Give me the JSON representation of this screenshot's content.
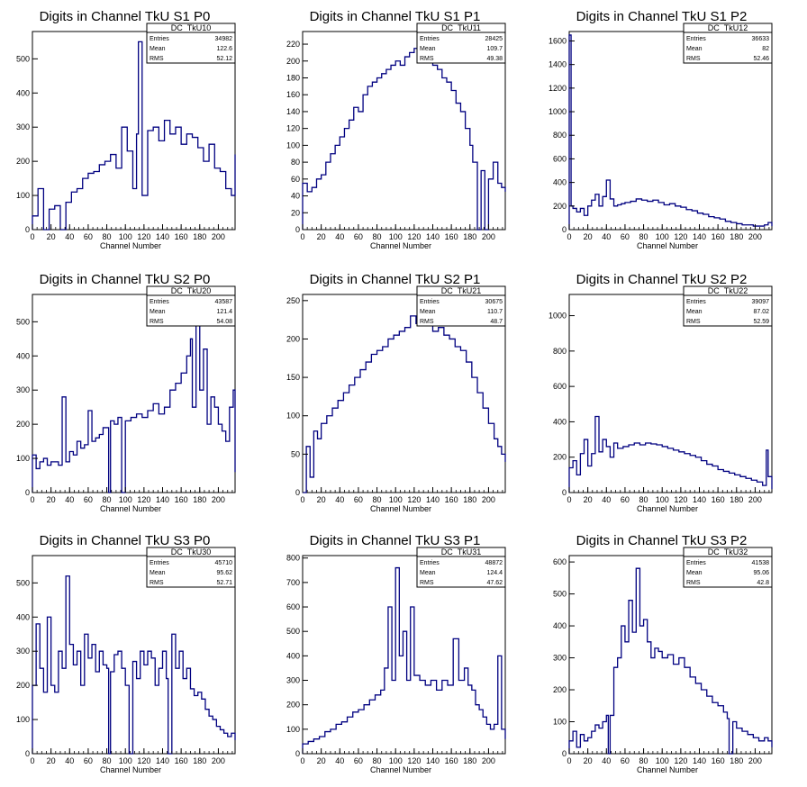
{
  "line_color": "#000080",
  "chart_data": [
    {
      "type": "line",
      "title": "Digits in Channel TkU S1 P0",
      "xlabel": "Channel Number",
      "stats": {
        "name": "DC_TkU10",
        "entries": "34982",
        "mean": "122.6",
        "rms": "52.12"
      },
      "xlim": [
        0,
        218
      ],
      "ylim": [
        0,
        580
      ],
      "xticks": [
        0,
        20,
        40,
        60,
        80,
        100,
        120,
        140,
        160,
        180,
        200
      ],
      "yticks": [
        100,
        200,
        300,
        400,
        500
      ],
      "x": [
        0,
        6,
        12,
        18,
        24,
        30,
        36,
        42,
        48,
        54,
        60,
        66,
        72,
        78,
        84,
        90,
        96,
        102,
        108,
        112,
        114,
        118,
        124,
        130,
        136,
        142,
        148,
        154,
        160,
        166,
        172,
        178,
        184,
        190,
        196,
        202,
        208,
        214,
        218
      ],
      "values": [
        40,
        120,
        0,
        60,
        70,
        0,
        80,
        110,
        120,
        150,
        165,
        170,
        190,
        200,
        220,
        180,
        300,
        230,
        120,
        280,
        550,
        100,
        290,
        300,
        260,
        320,
        280,
        300,
        250,
        280,
        270,
        240,
        200,
        250,
        180,
        170,
        120,
        100,
        220
      ],
      "ystyle": "int"
    },
    {
      "type": "line",
      "title": "Digits in Channel TkU S1 P1",
      "xlabel": "Channel Number",
      "stats": {
        "name": "DC_TkU11",
        "entries": "28425",
        "mean": "109.7",
        "rms": "49.38"
      },
      "xlim": [
        0,
        218
      ],
      "ylim": [
        0,
        235
      ],
      "xticks": [
        0,
        20,
        40,
        60,
        80,
        100,
        120,
        140,
        160,
        180,
        200
      ],
      "yticks": [
        20,
        40,
        60,
        80,
        100,
        120,
        140,
        160,
        180,
        200,
        220
      ],
      "x": [
        0,
        5,
        10,
        15,
        20,
        25,
        30,
        35,
        40,
        45,
        50,
        55,
        60,
        65,
        70,
        75,
        80,
        85,
        90,
        95,
        100,
        105,
        110,
        115,
        120,
        125,
        130,
        135,
        140,
        145,
        150,
        155,
        160,
        165,
        170,
        175,
        180,
        183,
        188,
        192,
        196,
        200,
        205,
        210,
        214,
        218
      ],
      "values": [
        55,
        45,
        50,
        60,
        65,
        80,
        90,
        100,
        110,
        120,
        130,
        145,
        140,
        160,
        170,
        175,
        180,
        185,
        190,
        195,
        200,
        195,
        205,
        210,
        215,
        210,
        205,
        200,
        195,
        190,
        180,
        175,
        165,
        150,
        140,
        120,
        100,
        80,
        0,
        70,
        0,
        60,
        80,
        55,
        50,
        45
      ],
      "ystyle": "int"
    },
    {
      "type": "line",
      "title": "Digits in Channel TkU S1 P2",
      "xlabel": "Channel Number",
      "stats": {
        "name": "DC_TkU12",
        "entries": "36633",
        "mean": "82",
        "rms": "52.46"
      },
      "xlim": [
        0,
        218
      ],
      "ylim": [
        0,
        1680
      ],
      "xticks": [
        0,
        20,
        40,
        60,
        80,
        100,
        120,
        140,
        160,
        180,
        200
      ],
      "yticks": [
        200,
        400,
        600,
        800,
        1000,
        1200,
        1400,
        1600
      ],
      "x": [
        0,
        2,
        4,
        8,
        12,
        16,
        20,
        24,
        28,
        32,
        36,
        40,
        44,
        48,
        52,
        56,
        60,
        66,
        72,
        78,
        84,
        90,
        96,
        102,
        108,
        114,
        120,
        126,
        132,
        138,
        144,
        150,
        156,
        162,
        168,
        174,
        180,
        186,
        192,
        198,
        204,
        210,
        214,
        218
      ],
      "values": [
        1650,
        200,
        180,
        150,
        180,
        120,
        200,
        250,
        300,
        200,
        280,
        420,
        260,
        200,
        210,
        220,
        230,
        240,
        260,
        250,
        240,
        250,
        230,
        210,
        220,
        200,
        190,
        170,
        160,
        140,
        130,
        110,
        100,
        90,
        70,
        60,
        50,
        40,
        40,
        30,
        30,
        40,
        60,
        30
      ],
      "ystyle": "int"
    },
    {
      "type": "line",
      "title": "Digits in Channel TkU S2 P0",
      "xlabel": "Channel Number",
      "stats": {
        "name": "DC_TkU20",
        "entries": "43587",
        "mean": "121.4",
        "rms": "54.08"
      },
      "xlim": [
        0,
        218
      ],
      "ylim": [
        0,
        580
      ],
      "xticks": [
        0,
        20,
        40,
        60,
        80,
        100,
        120,
        140,
        160,
        180,
        200
      ],
      "yticks": [
        100,
        200,
        300,
        400,
        500
      ],
      "x": [
        0,
        4,
        8,
        12,
        16,
        20,
        24,
        28,
        32,
        36,
        40,
        44,
        48,
        52,
        56,
        60,
        64,
        68,
        72,
        76,
        80,
        82,
        84,
        88,
        92,
        96,
        100,
        106,
        112,
        118,
        124,
        130,
        136,
        142,
        148,
        154,
        160,
        166,
        170,
        172,
        176,
        180,
        184,
        188,
        192,
        196,
        200,
        204,
        208,
        212,
        216,
        218
      ],
      "values": [
        110,
        70,
        90,
        100,
        80,
        90,
        90,
        80,
        280,
        90,
        120,
        110,
        150,
        130,
        140,
        240,
        150,
        160,
        170,
        190,
        190,
        0,
        210,
        200,
        220,
        0,
        210,
        220,
        230,
        220,
        240,
        260,
        230,
        250,
        300,
        320,
        350,
        400,
        450,
        250,
        560,
        300,
        420,
        200,
        280,
        250,
        200,
        180,
        150,
        250,
        300,
        60
      ],
      "ystyle": "int"
    },
    {
      "type": "line",
      "title": "Digits in Channel TkU S2 P1",
      "xlabel": "Channel Number",
      "stats": {
        "name": "DC_TkU21",
        "entries": "30675",
        "mean": "110.7",
        "rms": "48.7"
      },
      "xlim": [
        0,
        218
      ],
      "ylim": [
        0,
        258
      ],
      "xticks": [
        0,
        20,
        40,
        60,
        80,
        100,
        120,
        140,
        160,
        180,
        200
      ],
      "yticks": [
        50,
        100,
        150,
        200,
        250
      ],
      "x": [
        0,
        4,
        8,
        12,
        16,
        20,
        26,
        32,
        38,
        44,
        50,
        56,
        62,
        68,
        74,
        80,
        86,
        92,
        98,
        104,
        110,
        116,
        122,
        128,
        134,
        140,
        146,
        152,
        158,
        164,
        170,
        176,
        182,
        188,
        194,
        200,
        206,
        210,
        214,
        218
      ],
      "values": [
        0,
        60,
        20,
        80,
        70,
        90,
        100,
        110,
        120,
        130,
        140,
        150,
        160,
        170,
        180,
        185,
        190,
        200,
        205,
        210,
        215,
        230,
        220,
        235,
        225,
        210,
        215,
        205,
        200,
        190,
        185,
        170,
        150,
        130,
        110,
        90,
        70,
        60,
        50,
        40
      ],
      "ystyle": "int"
    },
    {
      "type": "line",
      "title": "Digits in Channel TkU S2 P2",
      "xlabel": "Channel Number",
      "stats": {
        "name": "DC_TkU22",
        "entries": "39097",
        "mean": "87.02",
        "rms": "52.59"
      },
      "xlim": [
        0,
        218
      ],
      "ylim": [
        0,
        1120
      ],
      "xticks": [
        0,
        20,
        40,
        60,
        80,
        100,
        120,
        140,
        160,
        180,
        200
      ],
      "yticks": [
        200,
        400,
        600,
        800,
        1000
      ],
      "x": [
        0,
        4,
        8,
        12,
        16,
        20,
        24,
        28,
        32,
        36,
        40,
        44,
        48,
        52,
        58,
        64,
        70,
        76,
        82,
        88,
        94,
        100,
        106,
        112,
        118,
        124,
        130,
        136,
        142,
        148,
        154,
        160,
        166,
        172,
        178,
        184,
        190,
        196,
        202,
        208,
        212,
        214,
        218
      ],
      "values": [
        140,
        180,
        100,
        220,
        300,
        150,
        220,
        430,
        230,
        300,
        260,
        200,
        280,
        250,
        260,
        270,
        280,
        270,
        280,
        275,
        270,
        260,
        250,
        240,
        230,
        220,
        210,
        200,
        180,
        160,
        150,
        130,
        120,
        110,
        100,
        90,
        80,
        70,
        60,
        40,
        240,
        90,
        20
      ],
      "ystyle": "int"
    },
    {
      "type": "line",
      "title": "Digits in Channel TkU S3 P0",
      "xlabel": "Channel Number",
      "stats": {
        "name": "DC_TkU30",
        "entries": "45710",
        "mean": "95.62",
        "rms": "52.71"
      },
      "xlim": [
        0,
        218
      ],
      "ylim": [
        0,
        580
      ],
      "xticks": [
        0,
        20,
        40,
        60,
        80,
        100,
        120,
        140,
        160,
        180,
        200
      ],
      "yticks": [
        100,
        200,
        300,
        400,
        500
      ],
      "x": [
        0,
        4,
        8,
        12,
        16,
        20,
        24,
        28,
        32,
        36,
        40,
        44,
        48,
        52,
        56,
        60,
        64,
        68,
        72,
        76,
        80,
        82,
        84,
        88,
        92,
        96,
        100,
        104,
        108,
        112,
        116,
        120,
        124,
        128,
        132,
        136,
        140,
        144,
        146,
        150,
        154,
        158,
        162,
        166,
        170,
        174,
        178,
        182,
        186,
        190,
        194,
        198,
        202,
        206,
        210,
        214,
        218
      ],
      "values": [
        200,
        380,
        250,
        180,
        400,
        200,
        180,
        300,
        250,
        520,
        320,
        260,
        300,
        200,
        350,
        280,
        320,
        240,
        300,
        260,
        250,
        0,
        240,
        290,
        300,
        250,
        200,
        0,
        270,
        220,
        300,
        260,
        300,
        280,
        200,
        250,
        300,
        220,
        0,
        350,
        250,
        300,
        220,
        250,
        190,
        170,
        180,
        160,
        130,
        110,
        100,
        80,
        70,
        60,
        50,
        60,
        40
      ],
      "ystyle": "int"
    },
    {
      "type": "line",
      "title": "Digits in Channel TkU S3 P1",
      "xlabel": "Channel Number",
      "stats": {
        "name": "DC_TkU31",
        "entries": "48872",
        "mean": "124.4",
        "rms": "47.62"
      },
      "xlim": [
        0,
        218
      ],
      "ylim": [
        0,
        810
      ],
      "xticks": [
        0,
        20,
        40,
        60,
        80,
        100,
        120,
        140,
        160,
        180,
        200
      ],
      "yticks": [
        100,
        200,
        300,
        400,
        500,
        600,
        700,
        800
      ],
      "x": [
        0,
        6,
        12,
        18,
        24,
        30,
        36,
        42,
        48,
        54,
        60,
        66,
        72,
        78,
        84,
        88,
        92,
        96,
        100,
        104,
        108,
        112,
        116,
        120,
        126,
        132,
        138,
        144,
        150,
        156,
        162,
        168,
        174,
        178,
        182,
        186,
        190,
        194,
        198,
        202,
        206,
        210,
        214,
        218
      ],
      "values": [
        40,
        50,
        60,
        70,
        90,
        100,
        120,
        130,
        150,
        170,
        180,
        200,
        220,
        240,
        260,
        350,
        600,
        300,
        760,
        400,
        500,
        300,
        600,
        320,
        300,
        280,
        300,
        260,
        300,
        280,
        470,
        300,
        350,
        280,
        260,
        200,
        180,
        150,
        120,
        100,
        120,
        400,
        100,
        60
      ],
      "ystyle": "int"
    },
    {
      "type": "line",
      "title": "Digits in Channel TkU S3 P2",
      "xlabel": "Channel Number",
      "stats": {
        "name": "DC_TkU32",
        "entries": "41538",
        "mean": "95.06",
        "rms": "42.8"
      },
      "xlim": [
        0,
        218
      ],
      "ylim": [
        0,
        620
      ],
      "xticks": [
        0,
        20,
        40,
        60,
        80,
        100,
        120,
        140,
        160,
        180,
        200
      ],
      "yticks": [
        100,
        200,
        300,
        400,
        500,
        600
      ],
      "x": [
        0,
        4,
        8,
        12,
        16,
        20,
        24,
        28,
        32,
        36,
        40,
        42,
        44,
        48,
        52,
        56,
        60,
        64,
        68,
        72,
        76,
        80,
        84,
        88,
        92,
        96,
        100,
        106,
        112,
        118,
        124,
        130,
        136,
        142,
        148,
        154,
        160,
        166,
        170,
        172,
        176,
        180,
        186,
        192,
        198,
        204,
        210,
        214,
        218
      ],
      "values": [
        40,
        70,
        20,
        60,
        40,
        50,
        70,
        90,
        80,
        100,
        120,
        0,
        120,
        270,
        300,
        400,
        350,
        480,
        380,
        580,
        400,
        420,
        350,
        300,
        330,
        320,
        300,
        310,
        280,
        300,
        270,
        240,
        220,
        200,
        180,
        160,
        150,
        130,
        110,
        0,
        100,
        80,
        70,
        60,
        50,
        40,
        50,
        40,
        20
      ],
      "ystyle": "int"
    }
  ]
}
